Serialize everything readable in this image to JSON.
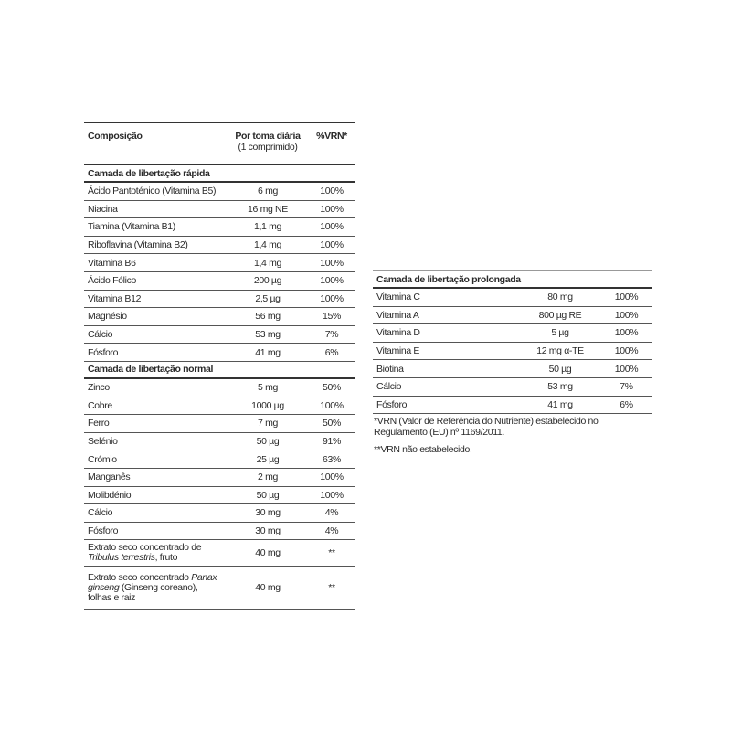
{
  "left_table": {
    "headers": {
      "composition": "Composição",
      "dose": "Por toma diária",
      "dose_sub": "(1 comprimido)",
      "vrn": "%VRN*"
    },
    "sections": [
      {
        "title": "Camada de libertação rápida",
        "rows": [
          [
            "Ácido Pantoténico (Vitamina B5)",
            "6 mg",
            "100%"
          ],
          [
            "Niacina",
            "16 mg NE",
            "100%"
          ],
          [
            "Tiamina (Vitamina B1)",
            "1,1 mg",
            "100%"
          ],
          [
            "Riboflavina (Vitamina B2)",
            "1,4 mg",
            "100%"
          ],
          [
            "Vitamina B6",
            "1,4 mg",
            "100%"
          ],
          [
            "Ácido Fólico",
            "200 µg",
            "100%"
          ],
          [
            "Vitamina B12",
            "2,5 µg",
            "100%"
          ],
          [
            "Magnésio",
            "56 mg",
            "15%"
          ],
          [
            "Cálcio",
            "53 mg",
            "7%"
          ],
          [
            "Fósforo",
            "41 mg",
            "6%"
          ]
        ]
      },
      {
        "title": "Camada de libertação normal",
        "rows": [
          [
            "Zinco",
            "5 mg",
            "50%"
          ],
          [
            "Cobre",
            "1000 µg",
            "100%"
          ],
          [
            "Ferro",
            "7 mg",
            "50%"
          ],
          [
            "Selénio",
            "50 µg",
            "91%"
          ],
          [
            "Crómio",
            "25 µg",
            "63%"
          ],
          [
            "Manganês",
            "2 mg",
            "100%"
          ],
          [
            "Molibdénio",
            "50 µg",
            "100%"
          ],
          [
            "Cálcio",
            "30 mg",
            "4%"
          ],
          [
            "Fósforo",
            "30 mg",
            "4%"
          ]
        ]
      }
    ],
    "extra": [
      {
        "pre": "Extrato seco concentrado de ",
        "italic": "Tribulus terrestris",
        "post": ", fruto",
        "dose": "40 mg",
        "vrn": "**"
      },
      {
        "pre": "Extrato seco concentrado ",
        "italic": "Panax ginseng",
        "post": " (Ginseng coreano), folhas e raiz",
        "dose": "40 mg",
        "vrn": "**"
      }
    ]
  },
  "right_table": {
    "title": "Camada de libertação prolongada",
    "rows": [
      [
        "Vitamina C",
        "80 mg",
        "100%"
      ],
      [
        "Vitamina A",
        "800 µg RE",
        "100%"
      ],
      [
        "Vitamina D",
        "5 µg",
        "100%"
      ],
      [
        "Vitamina E",
        "12 mg α-TE",
        "100%"
      ],
      [
        "Biotina",
        "50 µg",
        "100%"
      ],
      [
        "Cálcio",
        "53 mg",
        "7%"
      ],
      [
        "Fósforo",
        "41 mg",
        "6%"
      ]
    ]
  },
  "footnotes": [
    "*VRN (Valor de Referência do Nutriente) estabelecido no Regulamento (EU) nº 1169/2011.",
    "**VRN não estabelecido."
  ]
}
